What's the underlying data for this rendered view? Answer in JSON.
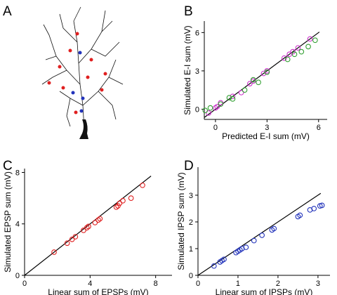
{
  "neuron_panel": {
    "label": "A"
  },
  "chart_data": [
    {
      "type": "scatter",
      "panel": "B",
      "xlabel": "Predicted E-I sum (mV)",
      "ylabel": "Simulated E-I sum (mV)",
      "xlim": [
        -0.65,
        6.5
      ],
      "ylim": [
        -0.8,
        6.9
      ],
      "xticks": [
        0,
        3,
        6
      ],
      "yticks": [
        0,
        3,
        6
      ],
      "series": [
        {
          "color": "#cc33cc",
          "x": [
            -0.4,
            0,
            0.1,
            0.3,
            1,
            1.5,
            2,
            2.2,
            2.8,
            3,
            4,
            4.3,
            4.5,
            4.8,
            5.5
          ],
          "values": [
            -0.3,
            0.1,
            0.2,
            0.5,
            1,
            1.3,
            2,
            2.2,
            2.8,
            3,
            4,
            4.3,
            4.5,
            4.8,
            5.5
          ]
        },
        {
          "color": "#33a033",
          "x": [
            -0.6,
            -0.3,
            0.3,
            0.8,
            1,
            1.7,
            2.2,
            2.5,
            3,
            4.2,
            4.6,
            5,
            5.4,
            5.8
          ],
          "values": [
            -0.1,
            0.1,
            0.4,
            0.9,
            0.8,
            1.5,
            2.3,
            2.1,
            2.9,
            3.9,
            4.3,
            4.5,
            4.9,
            5.4
          ]
        }
      ]
    },
    {
      "type": "scatter",
      "panel": "C",
      "xlabel": "Linear sum of EPSPs (mV)",
      "ylabel": "Simulated EPSP sum (mV)",
      "xlim": [
        0,
        9
      ],
      "ylim": [
        0,
        8.3
      ],
      "xticks": [
        0,
        4,
        8
      ],
      "yticks": [
        0,
        4,
        8
      ],
      "series": [
        {
          "color": "#e02020",
          "x": [
            1.8,
            2.6,
            2.9,
            3.1,
            3.6,
            3.8,
            3.9,
            4.3,
            4.5,
            4.6,
            5.6,
            5.7,
            5.8,
            6.0,
            6.5,
            7.2
          ],
          "values": [
            1.8,
            2.5,
            2.8,
            3.0,
            3.5,
            3.7,
            3.8,
            4.1,
            4.3,
            4.4,
            5.3,
            5.4,
            5.6,
            5.8,
            6.0,
            7.0
          ]
        }
      ]
    },
    {
      "type": "scatter",
      "panel": "D",
      "xlabel": "Linear sum of IPSPs (mV)",
      "ylabel": "Simulated IPSP sum (mV)",
      "xlim": [
        0,
        3.3
      ],
      "ylim": [
        0,
        4.05
      ],
      "xticks": [
        0,
        1,
        2,
        3
      ],
      "yticks": [
        0,
        1,
        2,
        3
      ],
      "series": [
        {
          "color": "#2233bb",
          "x": [
            0.4,
            0.55,
            0.6,
            0.65,
            0.95,
            1.0,
            1.05,
            1.1,
            1.2,
            1.4,
            1.6,
            1.85,
            1.9,
            2.5,
            2.55,
            2.8,
            2.9,
            3.05,
            3.1
          ],
          "values": [
            0.35,
            0.5,
            0.55,
            0.6,
            0.85,
            0.9,
            0.95,
            1.0,
            1.05,
            1.3,
            1.5,
            1.7,
            1.75,
            2.2,
            2.25,
            2.45,
            2.5,
            2.6,
            2.62
          ]
        }
      ]
    }
  ]
}
